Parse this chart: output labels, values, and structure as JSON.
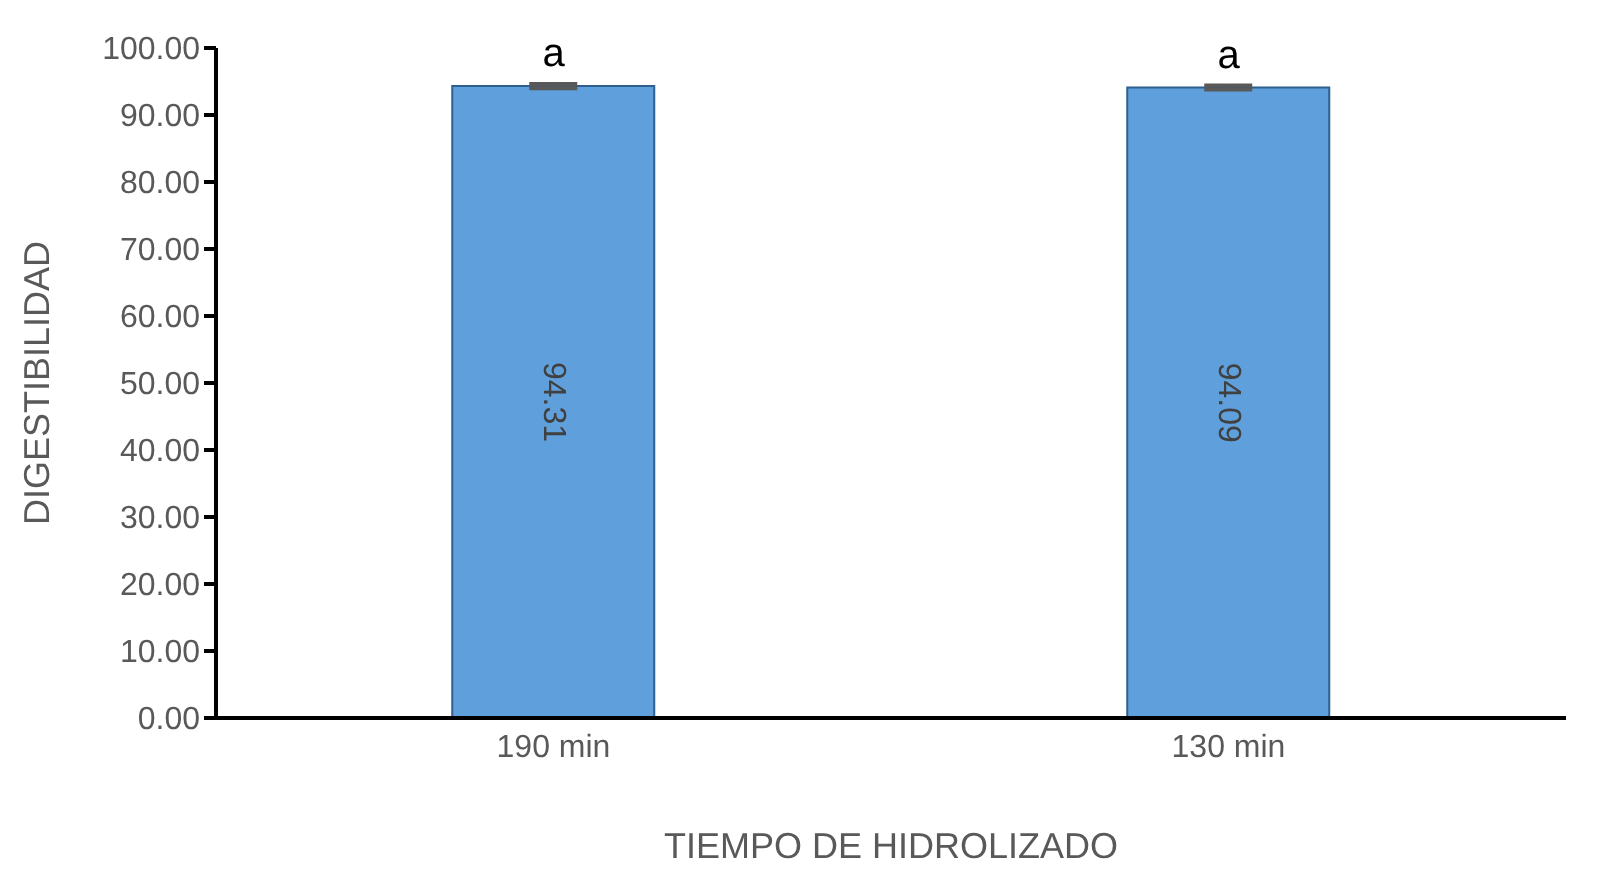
{
  "chart_data": {
    "type": "bar",
    "xlabel": "TIEMPO DE HIDROLIZADO",
    "ylabel": "DIGESTIBILIDAD",
    "categories": [
      "190 min",
      "130 min"
    ],
    "values": [
      94.31,
      94.09
    ],
    "errors": [
      0.3,
      0.3
    ],
    "color": "#5fa0dc",
    "data_labels": true,
    "ylim": [
      0,
      100
    ],
    "yticks": [
      {
        "value": 0,
        "label": "0.00"
      },
      {
        "value": 10,
        "label": "10.00"
      },
      {
        "value": 20,
        "label": "20.00"
      },
      {
        "value": 30,
        "label": "30.00"
      },
      {
        "value": 40,
        "label": "40.00"
      },
      {
        "value": 50,
        "label": "50.00"
      },
      {
        "value": 60,
        "label": "60.00"
      },
      {
        "value": 70,
        "label": "70.00"
      },
      {
        "value": 80,
        "label": "80.00"
      },
      {
        "value": 90,
        "label": "90.00"
      },
      {
        "value": 100,
        "label": "100.00"
      }
    ],
    "annotations": [
      {
        "text": "a",
        "x": "190 min",
        "y": 94.31
      },
      {
        "text": "a",
        "x": "130 min",
        "y": 94.09
      }
    ],
    "grid": false,
    "legend": false
  }
}
